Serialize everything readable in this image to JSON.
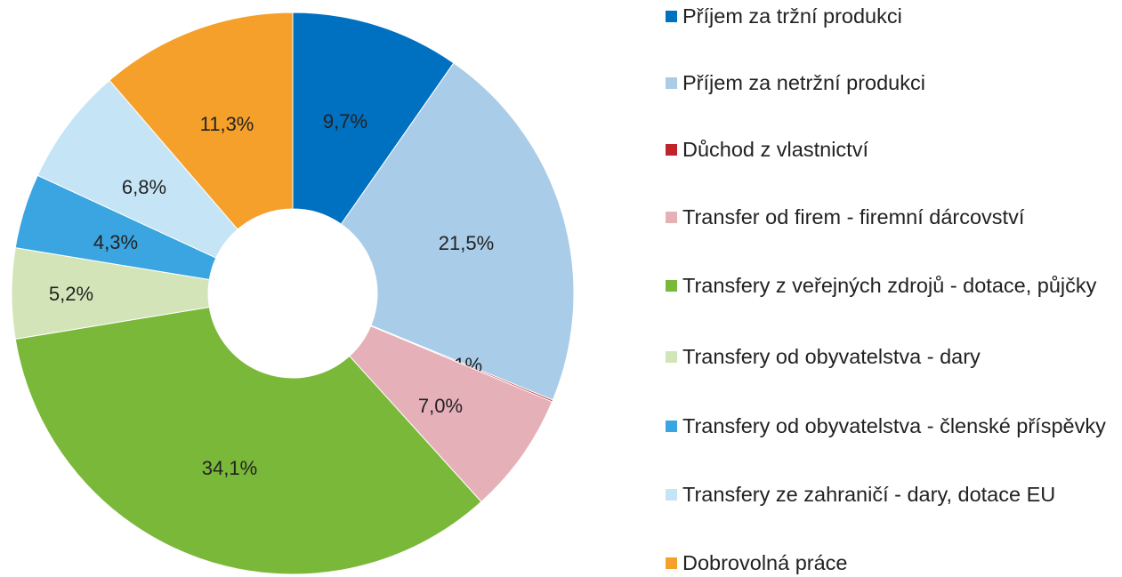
{
  "chart_data": {
    "type": "donut",
    "series": [
      {
        "name": "Příjem za tržní produkci",
        "color": "#0070c0",
        "values": [
          9.7
        ],
        "value_labels": [
          "9,7%"
        ]
      },
      {
        "name": "Příjem za netržní produkci",
        "color": "#a9cce8",
        "values": [
          21.5
        ],
        "value_labels": [
          "21,5%"
        ]
      },
      {
        "name": "Důchod z vlastnictví",
        "color": "#c0232c",
        "values": [
          0.1
        ],
        "value_labels": [
          "0,1%"
        ]
      },
      {
        "name": "Transfer od firem - firemní dárcovství",
        "color": "#e6b0b8",
        "values": [
          7.0
        ],
        "value_labels": [
          "7,0%"
        ]
      },
      {
        "name": "Transfery z veřejných zdrojů - dotace, půjčky",
        "color": "#7ab83a",
        "values": [
          34.1
        ],
        "value_labels": [
          "34,1%"
        ]
      },
      {
        "name": "Transfery od obyvatelstva - dary",
        "color": "#d3e5b8",
        "values": [
          5.2
        ],
        "value_labels": [
          "5,2%"
        ]
      },
      {
        "name": "Transfery od obyvatelstva - členské příspěvky",
        "color": "#3aa5e0",
        "values": [
          4.3
        ],
        "value_labels": [
          "4,3%"
        ]
      },
      {
        "name": "Transfery ze zahraničí - dary, dotace EU",
        "color": "#c5e5f7",
        "values": [
          6.8
        ],
        "value_labels": [
          "6,8%"
        ]
      },
      {
        "name": "Dobrovolná práce",
        "color": "#f5a02a",
        "values": [
          11.3
        ],
        "value_labels": [
          "11,3%"
        ]
      }
    ]
  }
}
